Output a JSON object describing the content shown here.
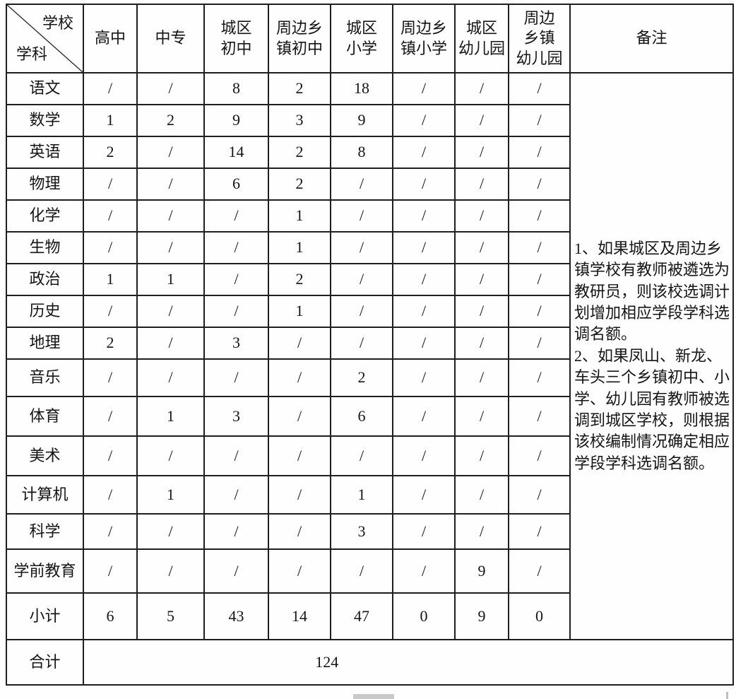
{
  "table": {
    "corner": {
      "top_right": "学校",
      "bottom_left": "学科"
    },
    "columns": [
      "高中",
      "中专",
      "城区\n初中",
      "周边乡\n镇初中",
      "城区\n小学",
      "周边乡\n镇小学",
      "城区\n幼儿园",
      "周边\n乡镇\n幼儿园"
    ],
    "remark_header": "备注",
    "rows": [
      {
        "label": "语文",
        "values": [
          "/",
          "/",
          "8",
          "2",
          "18",
          "/",
          "/",
          "/"
        ]
      },
      {
        "label": "数学",
        "values": [
          "1",
          "2",
          "9",
          "3",
          "9",
          "/",
          "/",
          "/"
        ]
      },
      {
        "label": "英语",
        "values": [
          "2",
          "/",
          "14",
          "2",
          "8",
          "/",
          "/",
          "/"
        ]
      },
      {
        "label": "物理",
        "values": [
          "/",
          "/",
          "6",
          "2",
          "/",
          "/",
          "/",
          "/"
        ]
      },
      {
        "label": "化学",
        "values": [
          "/",
          "/",
          "/",
          "1",
          "/",
          "/",
          "/",
          "/"
        ]
      },
      {
        "label": "生物",
        "values": [
          "/",
          "/",
          "/",
          "1",
          "/",
          "/",
          "/",
          "/"
        ]
      },
      {
        "label": "政治",
        "values": [
          "1",
          "1",
          "/",
          "2",
          "/",
          "/",
          "/",
          "/"
        ]
      },
      {
        "label": "历史",
        "values": [
          "/",
          "/",
          "/",
          "1",
          "/",
          "/",
          "/",
          "/"
        ]
      },
      {
        "label": "地理",
        "values": [
          "2",
          "/",
          "3",
          "/",
          "/",
          "/",
          "/",
          "/"
        ]
      },
      {
        "label": "音乐",
        "values": [
          "/",
          "/",
          "/",
          "/",
          "2",
          "/",
          "/",
          "/"
        ]
      },
      {
        "label": "体育",
        "values": [
          "/",
          "1",
          "3",
          "/",
          "6",
          "/",
          "/",
          "/"
        ]
      },
      {
        "label": "美术",
        "values": [
          "/",
          "/",
          "/",
          "/",
          "/",
          "/",
          "/",
          "/"
        ]
      },
      {
        "label": "计算机",
        "values": [
          "/",
          "1",
          "/",
          "/",
          "1",
          "/",
          "/",
          "/"
        ]
      },
      {
        "label": "科学",
        "values": [
          "/",
          "/",
          "/",
          "/",
          "3",
          "/",
          "/",
          "/"
        ]
      },
      {
        "label": "学前教育",
        "values": [
          "/",
          "/",
          "/",
          "/",
          "/",
          "/",
          "9",
          "/"
        ]
      },
      {
        "label": "小计",
        "values": [
          "6",
          "5",
          "43",
          "14",
          "47",
          "0",
          "9",
          "0"
        ]
      }
    ],
    "total": {
      "label": "合计",
      "value": "124"
    },
    "remarks": "1、如果城区及周边乡镇学校有教师被遴选为教研员，则该校选调计划增加相应学段学科选调名额。\n2、如果凤山、新龙、车头三个乡镇初中、小学、幼儿园有教师被选调到城区学校，则根据该校编制情况确定相应学段学科选调名额。",
    "colors": {
      "border": "#1f1f1f",
      "text": "#151515",
      "background": "#fefefe"
    }
  }
}
